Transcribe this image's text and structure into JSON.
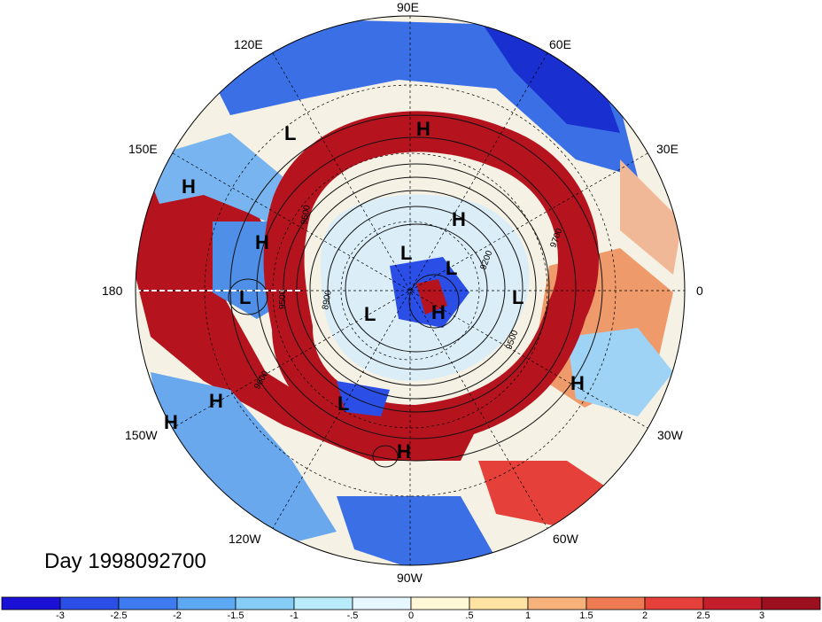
{
  "title": "Day 1998092700",
  "lon_labels": {
    "e90": "90E",
    "e60": "60E",
    "e120": "120E",
    "e30": "30E",
    "e150": "150E",
    "l180": "180",
    "l0": "0",
    "w150": "150W",
    "w30": "30W",
    "w120": "120W",
    "w60": "60W",
    "w90": "90W"
  },
  "pressure_systems": [
    "H",
    "L",
    "H",
    "H",
    "L",
    "L",
    "L",
    "L",
    "H",
    "L",
    "H",
    "H",
    "H",
    "H",
    "H",
    "L"
  ],
  "contour_labels": [
    "9500",
    "8900",
    "9600",
    "9700",
    "9200",
    "9500",
    "9500"
  ],
  "colorbar": {
    "colors": [
      "#1b10d6",
      "#2a4ee6",
      "#3f7bf0",
      "#5da8f2",
      "#86cdf5",
      "#b8ecfa",
      "#e6f7ff",
      "#fff7d6",
      "#ffe3a3",
      "#f7b17a",
      "#ef7b52",
      "#e6403a",
      "#c41d2c",
      "#9c0f1f"
    ],
    "labels": [
      "-3",
      "-2.5",
      "-2",
      "-1.5",
      "-1",
      "-.5",
      "0",
      ".5",
      "1",
      "1.5",
      "2",
      "2.5",
      "3"
    ]
  },
  "colors": {
    "neg_strong": "#1a2fd0",
    "neg": "#4f8fe8",
    "neutral": "#f7f3e6",
    "pos": "#ef7b52",
    "pos_strong": "#b5141f"
  }
}
